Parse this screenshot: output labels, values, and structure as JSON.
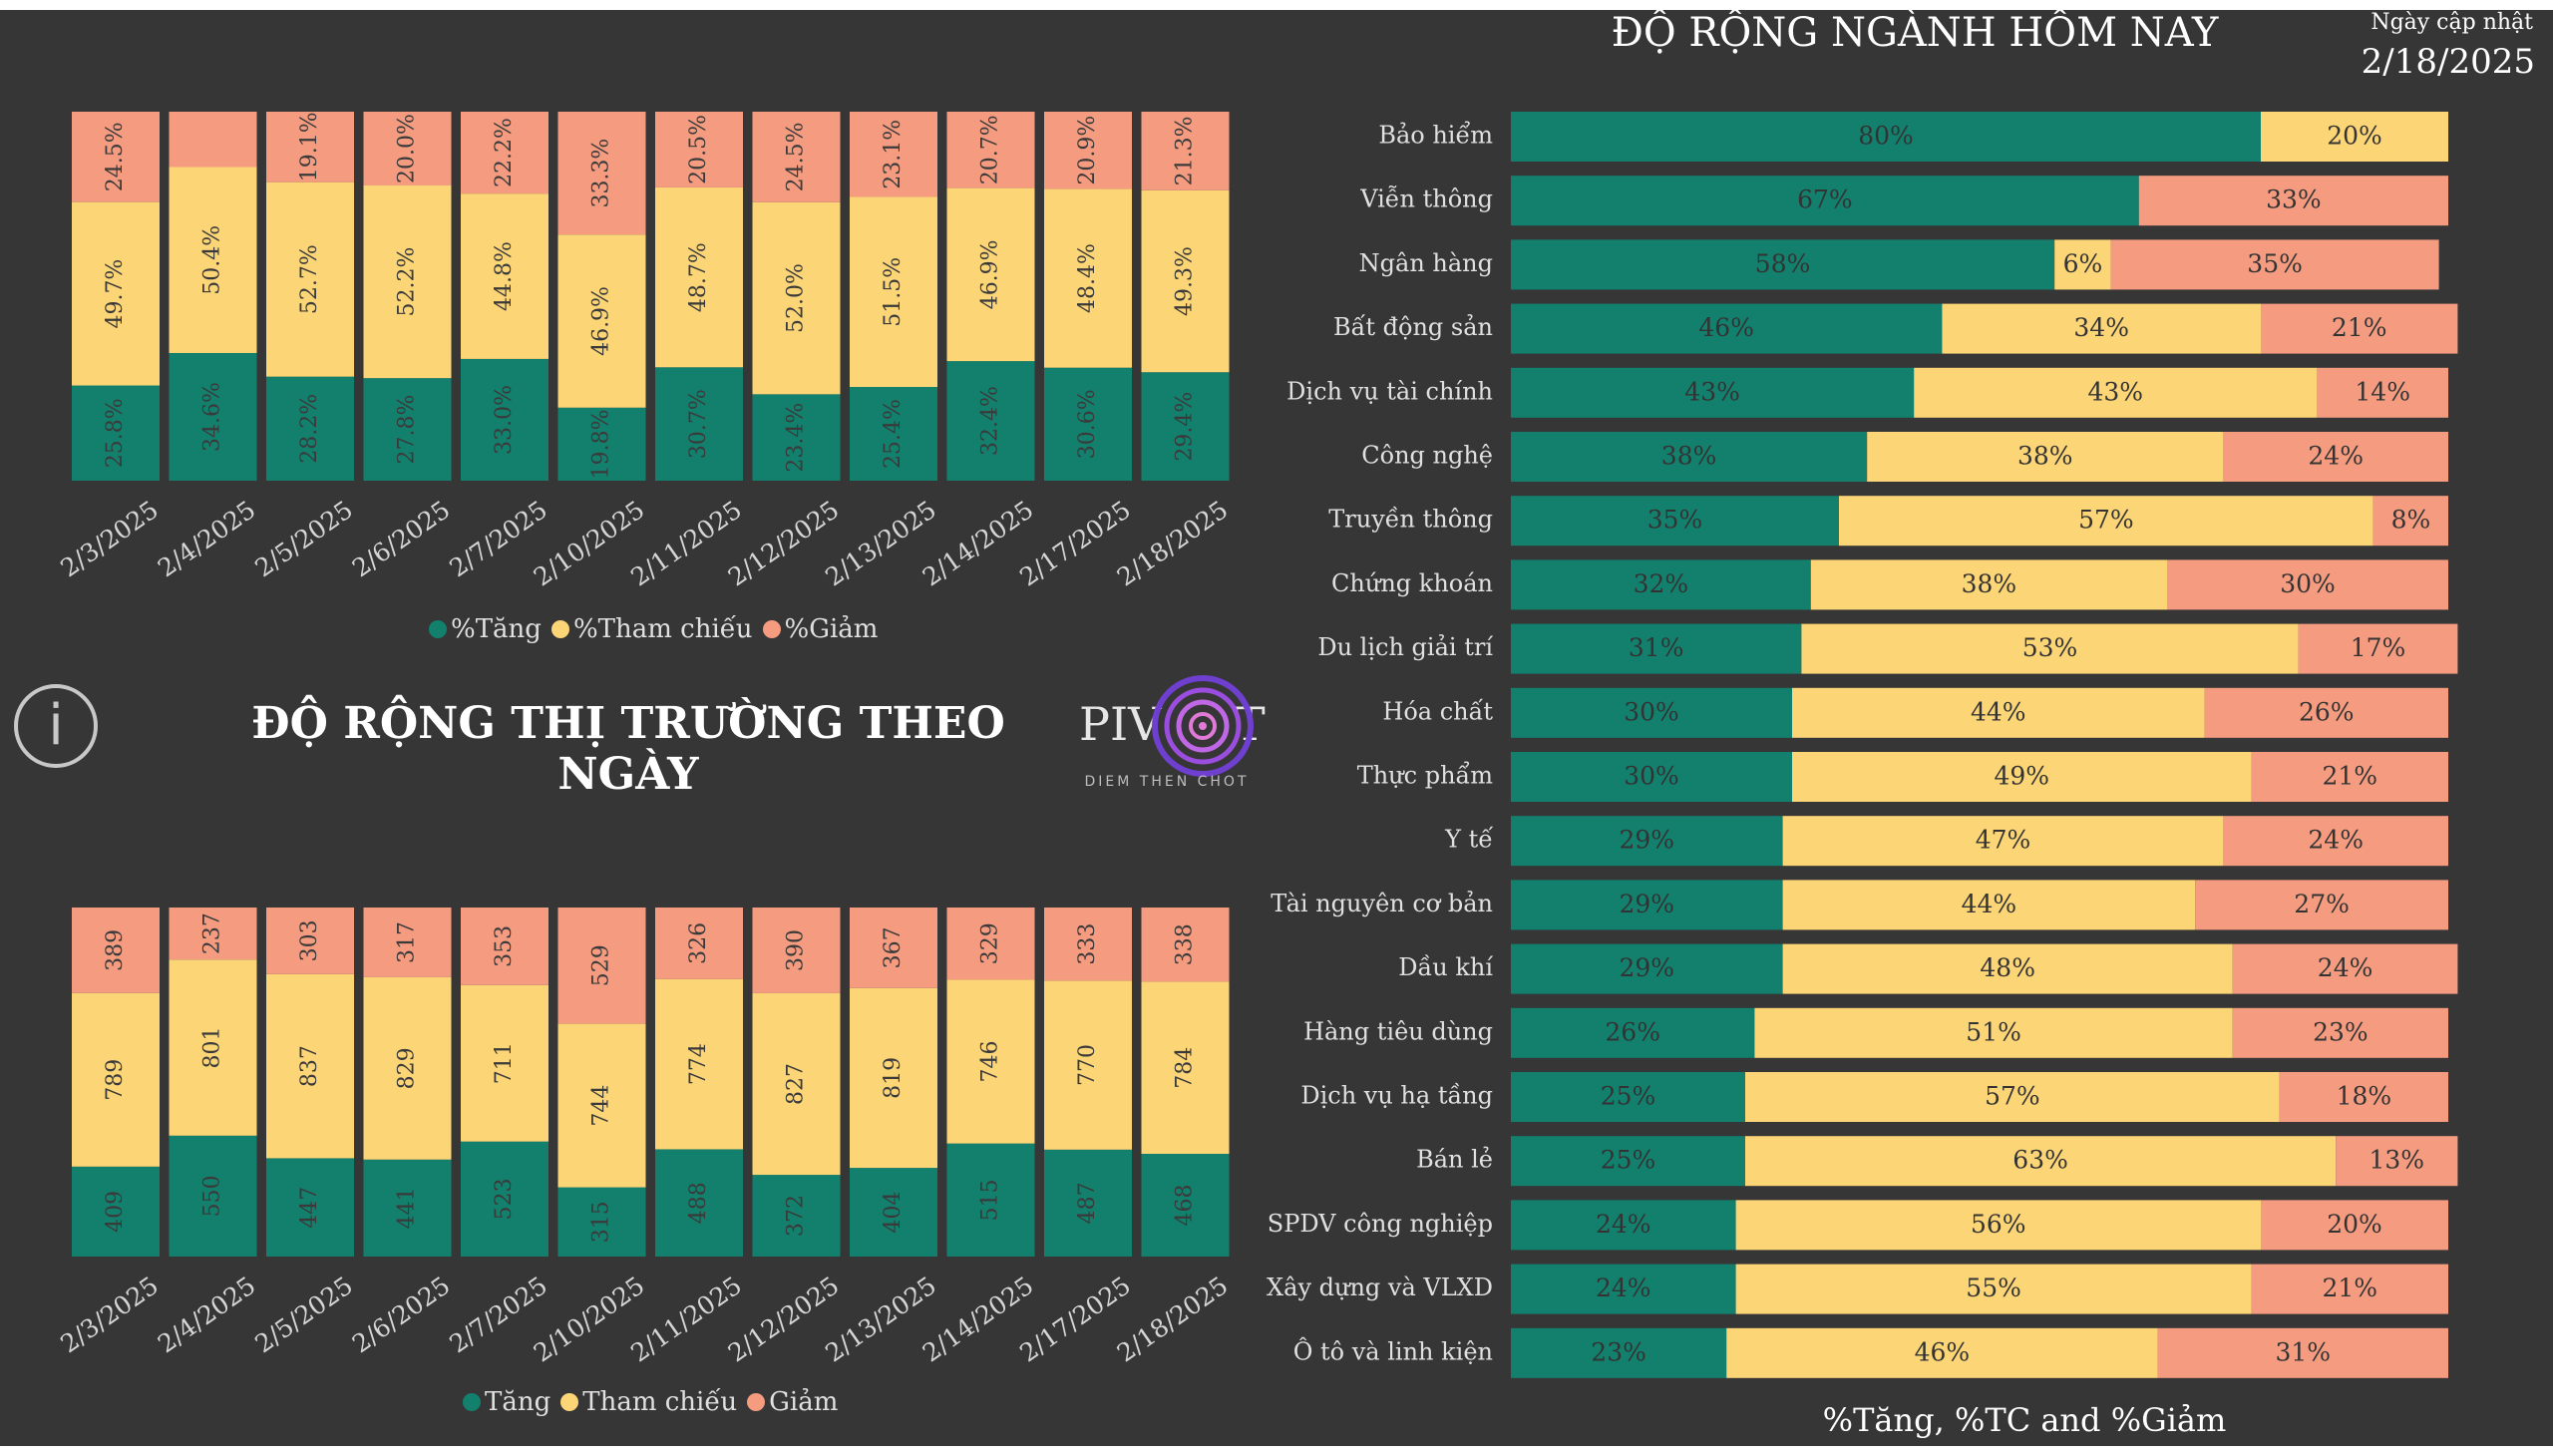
{
  "header": {
    "industry_title": "ĐỘ RỘNG NGÀNH HÔM NAY",
    "update_label": "Ngày cập nhật",
    "update_date": "2/18/2025",
    "market_title": "ĐỘ RỘNG THỊ TRƯỜNG THEO NGÀY",
    "info_icon_glyph": "i",
    "logo_sub": "DIEM THEN CHOT"
  },
  "colors": {
    "up": "#12806D",
    "ref": "#FCD577",
    "down": "#F59C80",
    "bg": "#363636"
  },
  "legend_pct": {
    "up": "%Tăng",
    "ref": "%Tham chiếu",
    "down": "%Giảm"
  },
  "legend_cnt": {
    "up": "Tăng",
    "ref": "Tham chiếu",
    "down": "Giảm"
  },
  "industry_axis_title": "%Tăng, %TC and %Giảm",
  "chart_data": [
    {
      "type": "bar",
      "stacked": true,
      "categories": [
        "2/3/2025",
        "2/4/2025",
        "2/5/2025",
        "2/6/2025",
        "2/7/2025",
        "2/10/2025",
        "2/11/2025",
        "2/12/2025",
        "2/13/2025",
        "2/14/2025",
        "2/17/2025",
        "2/18/2025"
      ],
      "series": [
        {
          "name": "%Tăng",
          "values": [
            25.8,
            34.6,
            28.2,
            27.8,
            33.0,
            19.8,
            30.7,
            23.4,
            25.4,
            32.4,
            30.6,
            29.4
          ]
        },
        {
          "name": "%Tham chiếu",
          "values": [
            49.7,
            50.4,
            52.7,
            52.2,
            44.8,
            46.9,
            48.7,
            52.0,
            51.5,
            46.9,
            48.4,
            49.3
          ]
        },
        {
          "name": "%Giảm",
          "values": [
            24.5,
            15.0,
            19.1,
            20.0,
            22.2,
            33.3,
            20.5,
            24.5,
            23.1,
            20.7,
            20.9,
            21.3
          ]
        }
      ],
      "labels": {
        "up": [
          "25.8%",
          "34.6%",
          "28.2%",
          "27.8%",
          "33.0%",
          "19.8%",
          "30.7%",
          "23.4%",
          "25.4%",
          "32.4%",
          "30.6%",
          "29.4%"
        ],
        "ref": [
          "49.7%",
          "50.4%",
          "52.7%",
          "52.2%",
          "44.8%",
          "46.9%",
          "48.7%",
          "52.0%",
          "51.5%",
          "46.9%",
          "48.4%",
          "49.3%"
        ],
        "down": [
          "24.5%",
          "",
          "19.1%",
          "20.0%",
          "22.2%",
          "33.3%",
          "20.5%",
          "24.5%",
          "23.1%",
          "20.7%",
          "20.9%",
          "21.3%"
        ]
      },
      "ylim": [
        0,
        100
      ]
    },
    {
      "type": "bar",
      "stacked": true,
      "categories": [
        "2/3/2025",
        "2/4/2025",
        "2/5/2025",
        "2/6/2025",
        "2/7/2025",
        "2/10/2025",
        "2/11/2025",
        "2/12/2025",
        "2/13/2025",
        "2/14/2025",
        "2/17/2025",
        "2/18/2025"
      ],
      "series": [
        {
          "name": "Tăng",
          "values": [
            409,
            550,
            447,
            441,
            523,
            315,
            488,
            372,
            404,
            515,
            487,
            468
          ]
        },
        {
          "name": "Tham chiếu",
          "values": [
            789,
            801,
            837,
            829,
            711,
            744,
            774,
            827,
            819,
            746,
            770,
            784
          ]
        },
        {
          "name": "Giảm",
          "values": [
            389,
            237,
            303,
            317,
            353,
            529,
            326,
            390,
            367,
            329,
            333,
            338
          ]
        }
      ],
      "normalized": true
    },
    {
      "type": "bar",
      "orientation": "horizontal",
      "stacked": true,
      "categories": [
        "Bảo hiểm",
        "Viễn thông",
        "Ngân hàng",
        "Bất động sản",
        "Dịch vụ tài chính",
        "Công nghệ",
        "Truyền thông",
        "Chứng khoán",
        "Du lịch giải trí",
        "Hóa chất",
        "Thực phẩm",
        "Y tế",
        "Tài nguyên cơ bản",
        "Dầu khí",
        "Hàng tiêu dùng",
        "Dịch vụ hạ tầng",
        "Bán lẻ",
        "SPDV công nghiệp",
        "Xây dựng và VLXD",
        "Ô tô và linh kiện"
      ],
      "series": [
        {
          "name": "%Tăng",
          "values": [
            80,
            67,
            58,
            46,
            43,
            38,
            35,
            32,
            31,
            30,
            30,
            29,
            29,
            29,
            26,
            25,
            25,
            24,
            24,
            23
          ]
        },
        {
          "name": "%TC",
          "values": [
            20,
            0,
            6,
            34,
            43,
            38,
            57,
            38,
            53,
            44,
            49,
            47,
            44,
            48,
            51,
            57,
            63,
            56,
            55,
            46
          ]
        },
        {
          "name": "%Giảm",
          "values": [
            0,
            33,
            35,
            21,
            14,
            24,
            8,
            30,
            17,
            26,
            21,
            24,
            27,
            24,
            23,
            18,
            13,
            20,
            21,
            31
          ]
        }
      ],
      "xlabel": "%Tăng, %TC and %Giảm",
      "xlim": [
        0,
        100
      ]
    }
  ]
}
